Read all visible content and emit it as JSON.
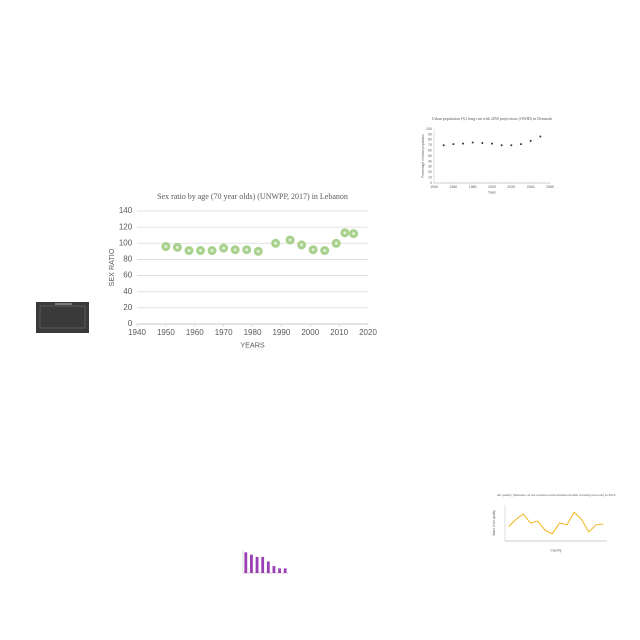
{
  "chart_data": [
    {
      "type": "scatter",
      "title": "Sex ratio by age (70 year olds) (UNWPP, 2017) in Lebanon",
      "x_label": "YEARS",
      "y_label": "SEX RATIO",
      "x": [
        1950,
        1954,
        1958,
        1962,
        1966,
        1970,
        1974,
        1978,
        1982,
        1988,
        1993,
        1997,
        2001,
        2005,
        2009,
        2012,
        2015
      ],
      "values": [
        96,
        95,
        91,
        91,
        91,
        94,
        92,
        92,
        90,
        100,
        104,
        98,
        92,
        91,
        100,
        113,
        112
      ],
      "color": "#a9d18e",
      "xlim": [
        1940,
        2020
      ],
      "xticks": [
        1940,
        1950,
        1960,
        1970,
        1980,
        1990,
        2000,
        2010,
        2020
      ],
      "ylim": [
        0,
        140
      ],
      "yticks": [
        0,
        20,
        40,
        60,
        80,
        100,
        120,
        140
      ],
      "grid": true
    },
    {
      "type": "scatter",
      "title": "Urban population (%) long-run with 2050 projections (OWID) in Denmark",
      "x_label": "Years",
      "y_label": "Percentage of urban population",
      "x": [
        1950,
        1960,
        1970,
        1980,
        1990,
        2000,
        2010,
        2020,
        2030,
        2040,
        2050
      ],
      "values": [
        70,
        72,
        73,
        75,
        74,
        73,
        70,
        70,
        72,
        78,
        86
      ],
      "color": "#333333",
      "xlim": [
        1940,
        2060
      ],
      "xticks": [
        1940,
        1960,
        1980,
        2000,
        2020,
        2040,
        2060
      ],
      "ylim": [
        0,
        100
      ],
      "yticks": [
        0,
        10,
        20,
        30,
        40,
        50,
        60,
        70,
        80,
        90,
        100
      ],
      "grid": false
    },
    {
      "type": "bar",
      "categories": [
        null,
        null,
        null,
        null,
        null,
        null,
        null,
        null
      ],
      "values": [
        9,
        8,
        7,
        7,
        5,
        3,
        2,
        2
      ],
      "color": "#9b3fb5",
      "ylim": [
        0,
        10
      ],
      "grid": false
    },
    {
      "type": "line",
      "title": "Air quality (Measure on the national environmental health tracking network) in 2016",
      "x_label": "Country",
      "y_label": "Value of air quality",
      "categories": [
        null,
        null,
        null,
        null,
        null,
        null,
        null,
        null,
        null,
        null,
        null,
        null,
        null,
        null
      ],
      "values": [
        4,
        6,
        7.5,
        5,
        5.5,
        3,
        2,
        5,
        4.5,
        8,
        6,
        2.5,
        4.5,
        4.7
      ],
      "color": "#f2b51c",
      "ylim": [
        0,
        10
      ],
      "grid": false
    }
  ]
}
